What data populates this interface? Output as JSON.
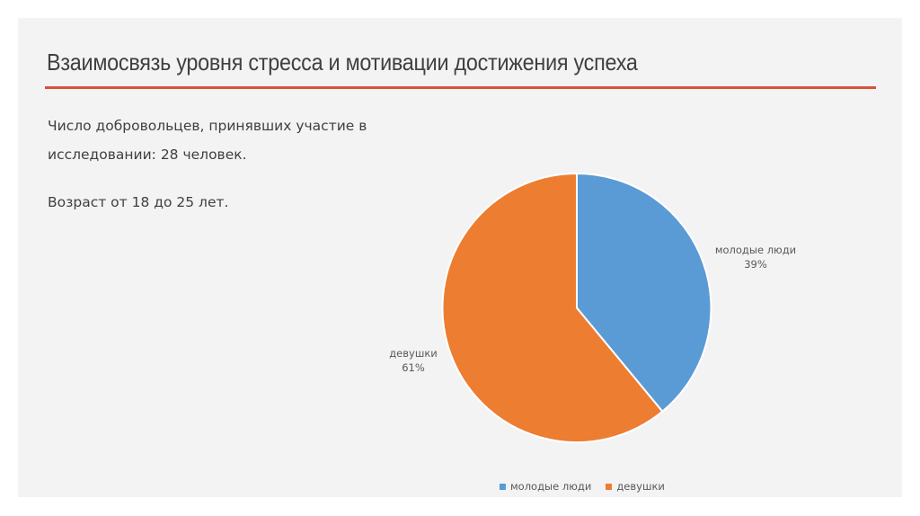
{
  "slide": {
    "title": "Взаимосвязь уровня стресса и мотивации достижения успеха",
    "accent_color": "#d5533a",
    "body": {
      "line1": "Число добровольцев, принявших участие в",
      "line2": "исследовании: 28 человек.",
      "line3": "Возраст от 18 до 25 лет."
    }
  },
  "chart_data": {
    "type": "pie",
    "title": "",
    "categories": [
      "молодые люди",
      "девушки"
    ],
    "values": [
      39,
      61
    ],
    "value_labels": [
      "39%",
      "61%"
    ],
    "colors": [
      "#5b9bd5",
      "#ed7d31"
    ],
    "legend_position": "bottom",
    "legend": [
      "молодые люди",
      "девушки"
    ]
  }
}
